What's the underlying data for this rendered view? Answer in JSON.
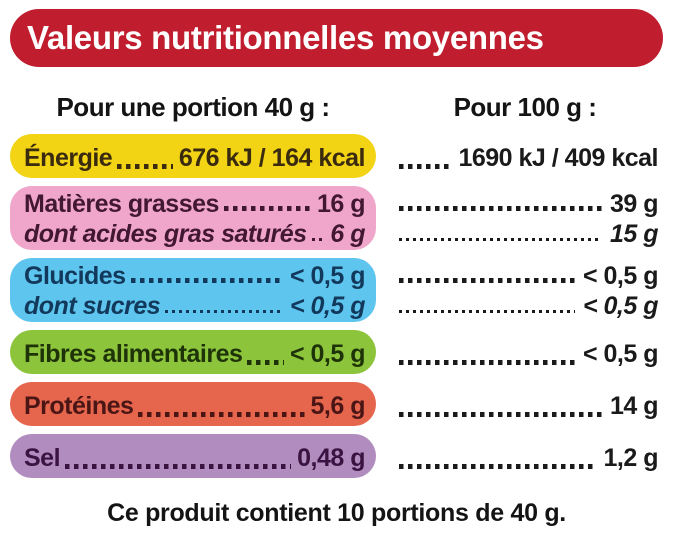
{
  "header": {
    "title": "Valeurs nutritionnelles moyennes",
    "bg_color": "#c01e2f",
    "text_color": "#ffffff"
  },
  "columns": {
    "portion_header": "Pour une portion 40 g :",
    "per100_header": "Pour 100 g :"
  },
  "rows": [
    {
      "color": "#f2d415",
      "text_color": "#3a2a0e",
      "lines": [
        {
          "label": "Énergie",
          "portion_value": "676 kJ / 164 kcal",
          "per100_value": "1690 kJ / 409 kcal",
          "italic": false
        }
      ]
    },
    {
      "color": "#f0a5ca",
      "text_color": "#421732",
      "lines": [
        {
          "label": "Matières grasses",
          "portion_value": "16 g",
          "per100_value": "39 g",
          "italic": false
        },
        {
          "label": "dont acides gras saturés",
          "portion_value": "6 g",
          "per100_value": "15 g",
          "italic": true
        }
      ]
    },
    {
      "color": "#5ec5ee",
      "text_color": "#12395b",
      "lines": [
        {
          "label": "Glucides",
          "portion_value": "< 0,5 g",
          "per100_value": "< 0,5 g",
          "italic": false
        },
        {
          "label": "dont sucres",
          "portion_value": "< 0,5 g",
          "per100_value": "< 0,5 g",
          "italic": true
        }
      ]
    },
    {
      "color": "#8cc43c",
      "text_color": "#1e3308",
      "lines": [
        {
          "label": "Fibres alimentaires",
          "portion_value": "< 0,5 g",
          "per100_value": "< 0,5 g",
          "italic": false
        }
      ]
    },
    {
      "color": "#e6654d",
      "text_color": "#4a1615",
      "lines": [
        {
          "label": "Protéines",
          "portion_value": "5,6 g",
          "per100_value": "14 g",
          "italic": false
        }
      ]
    },
    {
      "color": "#b18cbe",
      "text_color": "#3a1341",
      "lines": [
        {
          "label": "Sel",
          "portion_value": "0,48 g",
          "per100_value": "1,2 g",
          "italic": false
        }
      ]
    }
  ],
  "footer": {
    "text": "Ce produit contient 10 portions de 40 g."
  }
}
